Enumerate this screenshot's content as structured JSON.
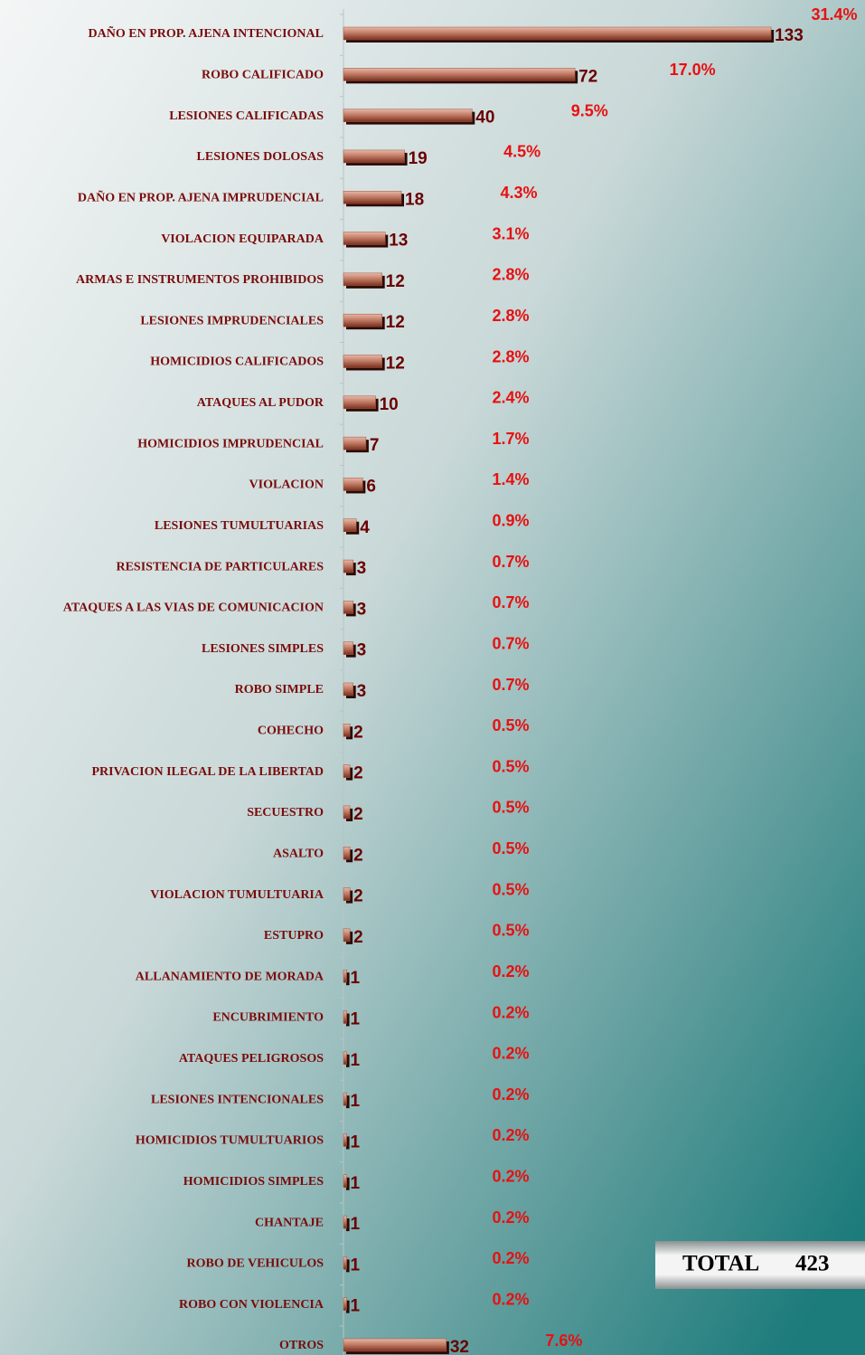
{
  "chart_data": {
    "type": "bar",
    "orientation": "horizontal",
    "categories": [
      "DAÑO EN PROP. AJENA INTENCIONAL",
      "ROBO CALIFICADO",
      "LESIONES  CALIFICADAS",
      "LESIONES DOLOSAS",
      "DAÑO EN PROP. AJENA IMPRUDENCIAL",
      "VIOLACION EQUIPARADA",
      "ARMAS  E  INSTRUMENTOS  PROHIBIDOS",
      "LESIONES  IMPRUDENCIALES",
      "HOMICIDIOS  CALIFICADOS",
      "ATAQUES AL PUDOR",
      "HOMICIDIOS   IMPRUDENCIAL",
      "VIOLACION",
      "LESIONES TUMULTUARIAS",
      "RESISTENCIA DE PARTICULARES",
      "ATAQUES A LAS VIAS DE COMUNICACION",
      "LESIONES  SIMPLES",
      "ROBO SIMPLE",
      "COHECHO",
      "PRIVACION ILEGAL DE LA LIBERTAD",
      "SECUESTRO",
      "ASALTO",
      "VIOLACION TUMULTUARIA",
      "ESTUPRO",
      "ALLANAMIENTO   DE   MORADA",
      "ENCUBRIMIENTO",
      "ATAQUES PELIGROSOS",
      "LESIONES INTENCIONALES",
      "HOMICIDIOS TUMULTUARIOS",
      "HOMICIDIOS  SIMPLES",
      "CHANTAJE",
      "ROBO DE VEHICULOS",
      "ROBO CON VIOLENCIA",
      "OTROS"
    ],
    "values": [
      133,
      72,
      40,
      19,
      18,
      13,
      12,
      12,
      12,
      10,
      7,
      6,
      4,
      3,
      3,
      3,
      3,
      2,
      2,
      2,
      2,
      2,
      2,
      1,
      1,
      1,
      1,
      1,
      1,
      1,
      1,
      1,
      32
    ],
    "percent_labels": [
      "31.4%",
      "17.0%",
      "9.5%",
      "4.5%",
      "4.3%",
      "3.1%",
      "2.8%",
      "2.8%",
      "2.8%",
      "2.4%",
      "1.7%",
      "1.4%",
      "0.9%",
      "0.7%",
      "0.7%",
      "0.7%",
      "0.7%",
      "0.5%",
      "0.5%",
      "0.5%",
      "0.5%",
      "0.5%",
      "0.5%",
      "0.2%",
      "0.2%",
      "0.2%",
      "0.2%",
      "0.2%",
      "0.2%",
      "0.2%",
      "0.2%",
      "0.2%",
      "7.6%"
    ],
    "xlim": [
      0,
      140
    ],
    "color": "#a0503a",
    "total_label": "TOTAL",
    "total": 423
  }
}
